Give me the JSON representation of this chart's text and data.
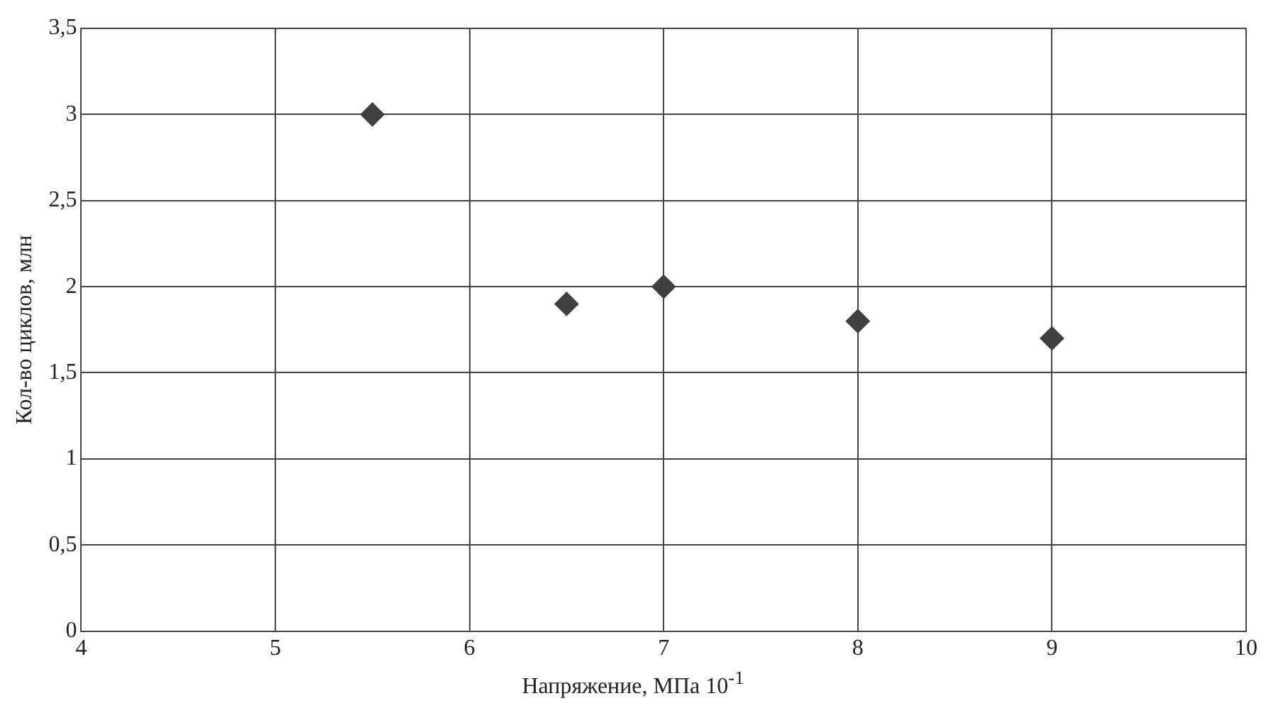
{
  "chart_data": {
    "type": "scatter",
    "xlabel": "Напряжение, МПа 10$^{-1}$",
    "ylabel": "Кол-во циклов, млн",
    "x": [
      5.5,
      6.5,
      7,
      8,
      9
    ],
    "values": [
      3,
      1.9,
      2,
      1.8,
      1.7
    ],
    "color": "#404040",
    "marker": "diamond",
    "xlim": [
      4,
      10
    ],
    "xticks": [
      4,
      5,
      6,
      7,
      8,
      9,
      10
    ],
    "ylim": [
      0,
      3.5
    ],
    "yticks": [
      0,
      {
        "value": 0.5,
        "label": "0,5"
      },
      1,
      {
        "value": 1.5,
        "label": "1,5"
      },
      2,
      {
        "value": 2.5,
        "label": "2,5"
      },
      3,
      {
        "value": 3.5,
        "label": "3,5"
      }
    ],
    "grid": true
  }
}
